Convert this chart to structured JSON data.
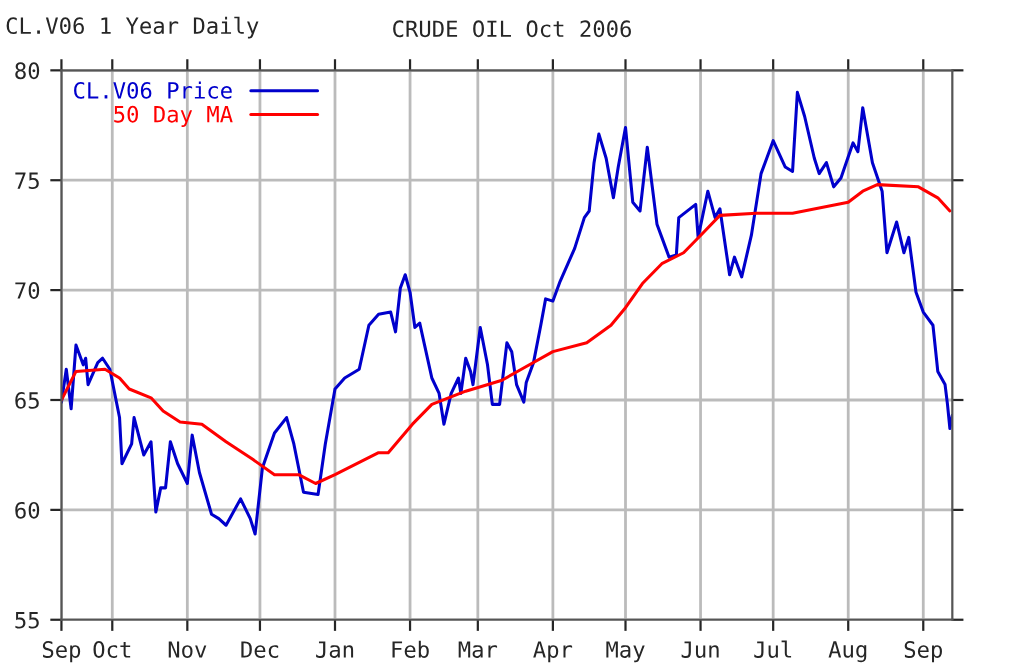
{
  "chart_data": {
    "type": "line",
    "title": "CRUDE OIL Oct 2006",
    "subtitle": "CL.V06 1 Year Daily",
    "xlim": [
      "2005-09-10",
      "2006-09-13"
    ],
    "ylim": [
      55,
      80
    ],
    "yticks": [
      55,
      60,
      65,
      70,
      75,
      80
    ],
    "xticks": [
      {
        "value": "2005-09-10",
        "label": "Sep"
      },
      {
        "value": "2005-10-01",
        "label": "Oct"
      },
      {
        "value": "2005-11-01",
        "label": "Nov"
      },
      {
        "value": "2005-12-01",
        "label": "Dec"
      },
      {
        "value": "2006-01-01",
        "label": "Jan"
      },
      {
        "value": "2006-02-01",
        "label": "Feb"
      },
      {
        "value": "2006-03-01",
        "label": "Mar"
      },
      {
        "value": "2006-04-01",
        "label": "Apr"
      },
      {
        "value": "2006-05-01",
        "label": "May"
      },
      {
        "value": "2006-06-01",
        "label": "Jun"
      },
      {
        "value": "2006-07-01",
        "label": "Jul"
      },
      {
        "value": "2006-08-01",
        "label": "Aug"
      },
      {
        "value": "2006-09-01",
        "label": "Sep"
      }
    ],
    "grid": true,
    "legend": "top left",
    "series": [
      {
        "name": "CL.V06 Price",
        "color": "#0000cc",
        "x": [
          "2005-09-10",
          "2005-09-12",
          "2005-09-14",
          "2005-09-16",
          "2005-09-19",
          "2005-09-20",
          "2005-09-21",
          "2005-09-25",
          "2005-09-27",
          "2005-09-30",
          "2005-10-04",
          "2005-10-05",
          "2005-10-09",
          "2005-10-10",
          "2005-10-14",
          "2005-10-17",
          "2005-10-19",
          "2005-10-21",
          "2005-10-23",
          "2005-10-25",
          "2005-10-28",
          "2005-11-01",
          "2005-11-03",
          "2005-11-06",
          "2005-11-11",
          "2005-11-14",
          "2005-11-17",
          "2005-11-23",
          "2005-11-27",
          "2005-11-29",
          "2005-12-02",
          "2005-12-07",
          "2005-12-12",
          "2005-12-15",
          "2005-12-19",
          "2005-12-25",
          "2005-12-28",
          "2006-01-01",
          "2006-01-05",
          "2006-01-11",
          "2006-01-15",
          "2006-01-19",
          "2006-01-24",
          "2006-01-26",
          "2006-01-28",
          "2006-01-30",
          "2006-02-01",
          "2006-02-03",
          "2006-02-05",
          "2006-02-07",
          "2006-02-10",
          "2006-02-13",
          "2006-02-15",
          "2006-02-18",
          "2006-02-21",
          "2006-02-22",
          "2006-02-24",
          "2006-02-26",
          "2006-02-27",
          "2006-03-02",
          "2006-03-05",
          "2006-03-07",
          "2006-03-10",
          "2006-03-13",
          "2006-03-15",
          "2006-03-17",
          "2006-03-20",
          "2006-03-21",
          "2006-03-24",
          "2006-03-27",
          "2006-03-29",
          "2006-04-01",
          "2006-04-04",
          "2006-04-10",
          "2006-04-14",
          "2006-04-16",
          "2006-04-18",
          "2006-04-20",
          "2006-04-23",
          "2006-04-26",
          "2006-04-28",
          "2006-05-01",
          "2006-05-04",
          "2006-05-07",
          "2006-05-10",
          "2006-05-14",
          "2006-05-16",
          "2006-05-19",
          "2006-05-22",
          "2006-05-23",
          "2006-05-30",
          "2006-05-31",
          "2006-06-04",
          "2006-06-07",
          "2006-06-09",
          "2006-06-13",
          "2006-06-15",
          "2006-06-18",
          "2006-06-22",
          "2006-06-26",
          "2006-07-01",
          "2006-07-06",
          "2006-07-09",
          "2006-07-11",
          "2006-07-14",
          "2006-07-18",
          "2006-07-20",
          "2006-07-23",
          "2006-07-26",
          "2006-07-29",
          "2006-08-03",
          "2006-08-05",
          "2006-08-07",
          "2006-08-11",
          "2006-08-15",
          "2006-08-17",
          "2006-08-21",
          "2006-08-24",
          "2006-08-26",
          "2006-08-29",
          "2006-09-01",
          "2006-09-05",
          "2006-09-07",
          "2006-09-10",
          "2006-09-11",
          "2006-09-12",
          "2006-09-13"
        ],
        "values": [
          64.9,
          66.4,
          64.6,
          67.5,
          66.6,
          66.9,
          65.7,
          66.7,
          66.9,
          66.4,
          64.2,
          62.1,
          63,
          64.2,
          62.5,
          63.1,
          59.9,
          61,
          61,
          63.1,
          62.1,
          61.2,
          63.4,
          61.7,
          59.8,
          59.6,
          59.3,
          60.5,
          59.6,
          58.9,
          61.9,
          63.5,
          64.2,
          63,
          60.8,
          60.7,
          63,
          65.5,
          66,
          66.4,
          68.4,
          68.9,
          69,
          68.1,
          70.1,
          70.7,
          69.9,
          68.3,
          68.5,
          67.5,
          66,
          65.3,
          63.9,
          65.3,
          66,
          65.3,
          66.9,
          66.3,
          65.7,
          68.3,
          66.6,
          64.8,
          64.8,
          67.6,
          67.2,
          65.7,
          64.9,
          65.8,
          66.7,
          68.4,
          69.6,
          69.5,
          70.4,
          71.9,
          73.3,
          73.6,
          75.8,
          77.1,
          76,
          74.2,
          75.6,
          77.4,
          74,
          73.6,
          76.5,
          73,
          72.4,
          71.5,
          71.6,
          73.3,
          73.9,
          72.4,
          74.5,
          73.3,
          73.7,
          70.7,
          71.5,
          70.6,
          72.5,
          75.3,
          76.8,
          75.6,
          75.4,
          79,
          77.9,
          76,
          75.3,
          75.8,
          74.7,
          75.1,
          76.7,
          76.3,
          78.3,
          75.8,
          74.5,
          71.7,
          73.1,
          71.7,
          72.4,
          69.9,
          69,
          68.4,
          66.3,
          65.7,
          64.8,
          63.7,
          64.3
        ]
      },
      {
        "name": "50 Day MA",
        "color": "#ff0000",
        "x": [
          "2005-09-10",
          "2005-09-16",
          "2005-09-28",
          "2005-10-04",
          "2005-10-08",
          "2005-10-17",
          "2005-10-22",
          "2005-10-29",
          "2005-11-07",
          "2005-11-17",
          "2005-11-28",
          "2005-12-07",
          "2005-12-17",
          "2005-12-24",
          "2006-01-01",
          "2006-01-10",
          "2006-01-19",
          "2006-01-23",
          "2006-02-02",
          "2006-02-10",
          "2006-02-24",
          "2006-03-11",
          "2006-03-19",
          "2006-04-01",
          "2006-04-15",
          "2006-04-25",
          "2006-05-01",
          "2006-05-08",
          "2006-05-16",
          "2006-05-25",
          "2006-06-02",
          "2006-06-09",
          "2006-06-24",
          "2006-07-09",
          "2006-08-01",
          "2006-08-07",
          "2006-08-13",
          "2006-08-30",
          "2006-09-07",
          "2006-09-12"
        ],
        "values": [
          65,
          66.3,
          66.4,
          66,
          65.5,
          65.1,
          64.5,
          64,
          63.9,
          63.1,
          62.3,
          61.6,
          61.6,
          61.2,
          61.6,
          62.1,
          62.6,
          62.6,
          63.9,
          64.8,
          65.4,
          65.9,
          66.4,
          67.2,
          67.6,
          68.4,
          69.2,
          70.3,
          71.2,
          71.7,
          72.6,
          73.4,
          73.5,
          73.5,
          74,
          74.5,
          74.8,
          74.7,
          74.2,
          73.6
        ]
      }
    ]
  }
}
